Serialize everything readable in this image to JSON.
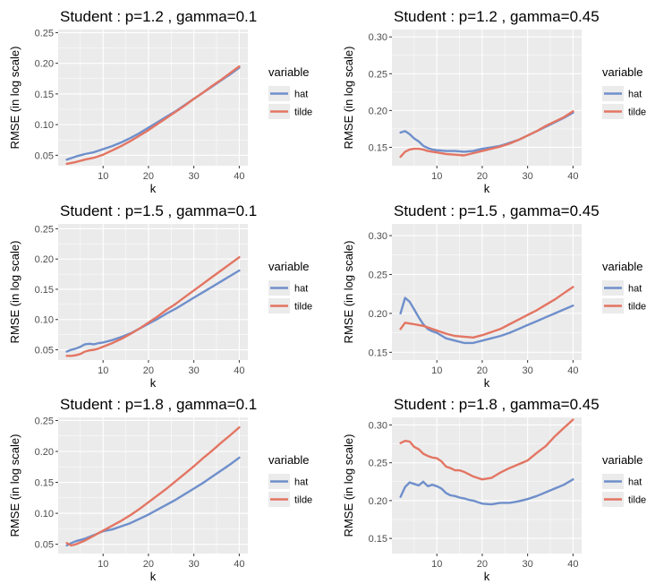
{
  "figure": {
    "background": "#ffffff",
    "panel_background": "#ebebeb",
    "grid_color": "#ffffff"
  },
  "chart_data": [
    {
      "type": "line",
      "title": "Student : p=1.2 , gamma=0.1",
      "xlabel": "k",
      "ylabel": "RMSE (in log scale)",
      "ylim": [
        0.033,
        0.255
      ],
      "xlim": [
        0.1,
        41.9
      ],
      "xticks": [
        10,
        20,
        30,
        40
      ],
      "yticks": [
        0.05,
        0.1,
        0.15,
        0.2,
        0.25
      ],
      "ytick_labels": [
        "0.05",
        "0.10",
        "0.15",
        "0.20",
        "0.25"
      ],
      "grid": true,
      "legend": {
        "title": "variable",
        "position": "right"
      },
      "series": [
        {
          "name": "hat",
          "color": "#6f8fcb",
          "x": [
            2,
            4,
            6,
            8,
            10,
            12,
            14,
            16,
            18,
            20,
            22,
            24,
            26,
            28,
            30,
            32,
            34,
            36,
            38,
            40
          ],
          "values": [
            0.043,
            0.048,
            0.052,
            0.055,
            0.06,
            0.065,
            0.071,
            0.078,
            0.086,
            0.095,
            0.104,
            0.113,
            0.122,
            0.132,
            0.142,
            0.152,
            0.162,
            0.172,
            0.182,
            0.193
          ]
        },
        {
          "name": "tilde",
          "color": "#e37563",
          "x": [
            2,
            4,
            6,
            8,
            10,
            12,
            14,
            16,
            18,
            20,
            22,
            24,
            26,
            28,
            30,
            32,
            34,
            36,
            38,
            40
          ],
          "values": [
            0.036,
            0.039,
            0.043,
            0.046,
            0.051,
            0.058,
            0.065,
            0.073,
            0.082,
            0.091,
            0.101,
            0.111,
            0.121,
            0.131,
            0.142,
            0.152,
            0.163,
            0.173,
            0.184,
            0.195
          ]
        }
      ]
    },
    {
      "type": "line",
      "title": "Student : p=1.2 , gamma=0.45",
      "xlabel": "k",
      "ylabel": "RMSE (in log scale)",
      "ylim": [
        0.125,
        0.31
      ],
      "xlim": [
        0.1,
        41.9
      ],
      "xticks": [
        10,
        20,
        30,
        40
      ],
      "yticks": [
        0.15,
        0.2,
        0.25,
        0.3
      ],
      "ytick_labels": [
        "0.15",
        "0.20",
        "0.25",
        "0.30"
      ],
      "grid": true,
      "legend": {
        "title": "variable",
        "position": "right"
      },
      "series": [
        {
          "name": "hat",
          "color": "#6f8fcb",
          "x": [
            2,
            3,
            4,
            5,
            6,
            7,
            8,
            9,
            10,
            12,
            14,
            16,
            18,
            20,
            22,
            24,
            26,
            28,
            30,
            32,
            34,
            36,
            38,
            40
          ],
          "values": [
            0.17,
            0.172,
            0.168,
            0.162,
            0.158,
            0.152,
            0.149,
            0.147,
            0.146,
            0.145,
            0.145,
            0.144,
            0.145,
            0.148,
            0.15,
            0.152,
            0.156,
            0.16,
            0.166,
            0.172,
            0.178,
            0.184,
            0.19,
            0.197
          ]
        },
        {
          "name": "tilde",
          "color": "#e37563",
          "x": [
            2,
            3,
            4,
            5,
            6,
            7,
            8,
            9,
            10,
            12,
            14,
            16,
            18,
            20,
            22,
            24,
            26,
            28,
            30,
            32,
            34,
            36,
            38,
            40
          ],
          "values": [
            0.137,
            0.144,
            0.147,
            0.148,
            0.148,
            0.147,
            0.145,
            0.144,
            0.143,
            0.141,
            0.14,
            0.139,
            0.142,
            0.145,
            0.148,
            0.151,
            0.155,
            0.16,
            0.166,
            0.172,
            0.179,
            0.185,
            0.191,
            0.199
          ]
        }
      ]
    },
    {
      "type": "line",
      "title": "Student : p=1.5 , gamma=0.1",
      "xlabel": "k",
      "ylabel": "RMSE (in log scale)",
      "ylim": [
        0.033,
        0.258
      ],
      "xlim": [
        0.1,
        41.9
      ],
      "xticks": [
        10,
        20,
        30,
        40
      ],
      "yticks": [
        0.05,
        0.1,
        0.15,
        0.2,
        0.25
      ],
      "ytick_labels": [
        "0.05",
        "0.10",
        "0.15",
        "0.20",
        "0.25"
      ],
      "grid": true,
      "legend": {
        "title": "variable",
        "position": "right"
      },
      "series": [
        {
          "name": "hat",
          "color": "#6f8fcb",
          "x": [
            2,
            3,
            4,
            5,
            6,
            7,
            8,
            9,
            10,
            12,
            14,
            16,
            18,
            20,
            22,
            24,
            26,
            28,
            30,
            32,
            34,
            36,
            38,
            40
          ],
          "values": [
            0.047,
            0.05,
            0.052,
            0.055,
            0.059,
            0.06,
            0.059,
            0.061,
            0.062,
            0.066,
            0.071,
            0.077,
            0.085,
            0.093,
            0.101,
            0.11,
            0.118,
            0.127,
            0.136,
            0.145,
            0.154,
            0.163,
            0.172,
            0.181
          ]
        },
        {
          "name": "tilde",
          "color": "#e37563",
          "x": [
            2,
            3,
            4,
            5,
            6,
            7,
            8,
            9,
            10,
            12,
            14,
            16,
            18,
            20,
            22,
            24,
            26,
            28,
            30,
            32,
            34,
            36,
            38,
            40
          ],
          "values": [
            0.04,
            0.04,
            0.041,
            0.043,
            0.047,
            0.049,
            0.05,
            0.052,
            0.055,
            0.061,
            0.068,
            0.076,
            0.085,
            0.095,
            0.105,
            0.116,
            0.126,
            0.137,
            0.148,
            0.159,
            0.17,
            0.181,
            0.192,
            0.203
          ]
        }
      ]
    },
    {
      "type": "line",
      "title": "Student : p=1.5 , gamma=0.45",
      "xlabel": "k",
      "ylabel": "RMSE (in log scale)",
      "ylim": [
        0.14,
        0.315
      ],
      "xlim": [
        0.1,
        41.9
      ],
      "xticks": [
        10,
        20,
        30,
        40
      ],
      "yticks": [
        0.15,
        0.2,
        0.25,
        0.3
      ],
      "ytick_labels": [
        "0.15",
        "0.20",
        "0.25",
        "0.30"
      ],
      "grid": true,
      "legend": {
        "title": "variable",
        "position": "right"
      },
      "series": [
        {
          "name": "hat",
          "color": "#6f8fcb",
          "x": [
            2,
            3,
            4,
            5,
            6,
            7,
            8,
            9,
            10,
            12,
            14,
            16,
            18,
            20,
            22,
            24,
            26,
            28,
            30,
            32,
            34,
            36,
            38,
            40
          ],
          "values": [
            0.2,
            0.22,
            0.215,
            0.205,
            0.195,
            0.186,
            0.18,
            0.177,
            0.175,
            0.168,
            0.165,
            0.162,
            0.162,
            0.165,
            0.168,
            0.171,
            0.175,
            0.18,
            0.185,
            0.19,
            0.195,
            0.2,
            0.205,
            0.21
          ]
        },
        {
          "name": "tilde",
          "color": "#e37563",
          "x": [
            2,
            3,
            4,
            5,
            6,
            7,
            8,
            9,
            10,
            12,
            14,
            16,
            18,
            20,
            22,
            24,
            26,
            28,
            30,
            32,
            34,
            36,
            38,
            40
          ],
          "values": [
            0.18,
            0.188,
            0.187,
            0.186,
            0.185,
            0.184,
            0.182,
            0.18,
            0.178,
            0.174,
            0.171,
            0.17,
            0.169,
            0.172,
            0.176,
            0.18,
            0.186,
            0.192,
            0.198,
            0.204,
            0.211,
            0.218,
            0.226,
            0.234
          ]
        }
      ]
    },
    {
      "type": "line",
      "title": "Student : p=1.8 , gamma=0.1",
      "xlabel": "k",
      "ylabel": "RMSE (in log scale)",
      "ylim": [
        0.035,
        0.255
      ],
      "xlim": [
        0.1,
        41.9
      ],
      "xticks": [
        10,
        20,
        30,
        40
      ],
      "yticks": [
        0.05,
        0.1,
        0.15,
        0.2,
        0.25
      ],
      "ytick_labels": [
        "0.05",
        "0.10",
        "0.15",
        "0.20",
        "0.25"
      ],
      "grid": true,
      "legend": {
        "title": "variable",
        "position": "right"
      },
      "series": [
        {
          "name": "hat",
          "color": "#6f8fcb",
          "x": [
            2,
            3,
            4,
            5,
            6,
            7,
            8,
            9,
            10,
            12,
            14,
            16,
            18,
            20,
            22,
            24,
            26,
            28,
            30,
            32,
            34,
            36,
            38,
            40
          ],
          "values": [
            0.048,
            0.052,
            0.055,
            0.057,
            0.059,
            0.062,
            0.065,
            0.068,
            0.071,
            0.074,
            0.079,
            0.084,
            0.091,
            0.098,
            0.106,
            0.114,
            0.122,
            0.131,
            0.14,
            0.149,
            0.159,
            0.169,
            0.179,
            0.19
          ]
        },
        {
          "name": "tilde",
          "color": "#e37563",
          "x": [
            2,
            3,
            4,
            5,
            6,
            7,
            8,
            9,
            10,
            12,
            14,
            16,
            18,
            20,
            22,
            24,
            26,
            28,
            30,
            32,
            34,
            36,
            38,
            40
          ],
          "values": [
            0.052,
            0.048,
            0.05,
            0.053,
            0.056,
            0.06,
            0.064,
            0.068,
            0.072,
            0.08,
            0.088,
            0.097,
            0.107,
            0.118,
            0.129,
            0.14,
            0.152,
            0.164,
            0.176,
            0.189,
            0.201,
            0.214,
            0.226,
            0.239
          ]
        }
      ]
    },
    {
      "type": "line",
      "title": "Student : p=1.8 , gamma=0.45",
      "xlabel": "k",
      "ylabel": "RMSE (in log scale)",
      "ylim": [
        0.13,
        0.31
      ],
      "xlim": [
        0.1,
        41.9
      ],
      "xticks": [
        10,
        20,
        30,
        40
      ],
      "yticks": [
        0.15,
        0.2,
        0.25,
        0.3
      ],
      "ytick_labels": [
        "0.15",
        "0.20",
        "0.25",
        "0.30"
      ],
      "grid": true,
      "legend": {
        "title": "variable",
        "position": "right"
      },
      "series": [
        {
          "name": "hat",
          "color": "#6f8fcb",
          "x": [
            2,
            3,
            4,
            5,
            6,
            7,
            8,
            9,
            10,
            11,
            12,
            13,
            14,
            15,
            16,
            17,
            18,
            19,
            20,
            22,
            24,
            26,
            28,
            30,
            32,
            34,
            36,
            38,
            40
          ],
          "values": [
            0.205,
            0.218,
            0.224,
            0.222,
            0.22,
            0.225,
            0.219,
            0.221,
            0.219,
            0.216,
            0.21,
            0.207,
            0.206,
            0.204,
            0.203,
            0.201,
            0.2,
            0.198,
            0.196,
            0.195,
            0.197,
            0.197,
            0.199,
            0.202,
            0.206,
            0.211,
            0.216,
            0.221,
            0.228
          ]
        },
        {
          "name": "tilde",
          "color": "#e37563",
          "x": [
            2,
            3,
            4,
            5,
            6,
            7,
            8,
            9,
            10,
            11,
            12,
            13,
            14,
            15,
            16,
            17,
            18,
            19,
            20,
            22,
            24,
            26,
            28,
            30,
            32,
            34,
            36,
            38,
            40
          ],
          "values": [
            0.276,
            0.279,
            0.278,
            0.271,
            0.268,
            0.262,
            0.259,
            0.257,
            0.256,
            0.252,
            0.245,
            0.243,
            0.24,
            0.24,
            0.238,
            0.235,
            0.232,
            0.23,
            0.228,
            0.23,
            0.237,
            0.243,
            0.248,
            0.253,
            0.263,
            0.272,
            0.285,
            0.296,
            0.307
          ]
        }
      ]
    }
  ]
}
